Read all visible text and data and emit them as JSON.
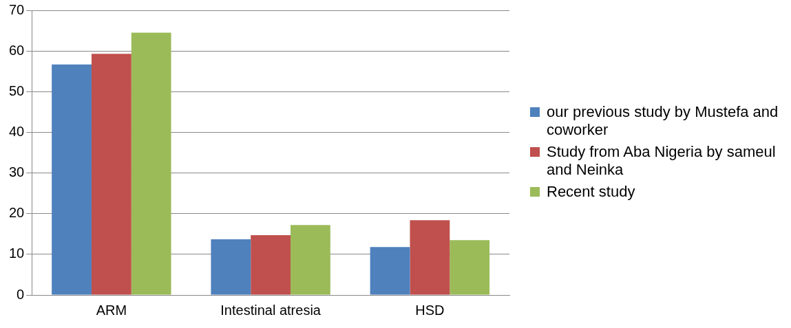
{
  "chart_data": {
    "type": "bar",
    "categories": [
      "ARM",
      "Intestinal atresia",
      "HSD"
    ],
    "series": [
      {
        "name": "our previous study by Mustefa and coworker",
        "color": "#4f81bd",
        "values": [
          56.7,
          13.7,
          11.8
        ]
      },
      {
        "name": "Study from Aba Nigeria by sameul and Neinka",
        "color": "#c0504d",
        "values": [
          59.3,
          14.7,
          18.4
        ]
      },
      {
        "name": "Recent study",
        "color": "#9bbb59",
        "values": [
          64.5,
          17.2,
          13.5
        ]
      }
    ],
    "ylim": [
      0,
      70
    ],
    "yticks": [
      0,
      10,
      20,
      30,
      40,
      50,
      60,
      70
    ],
    "grid": "y",
    "legend": "right"
  }
}
